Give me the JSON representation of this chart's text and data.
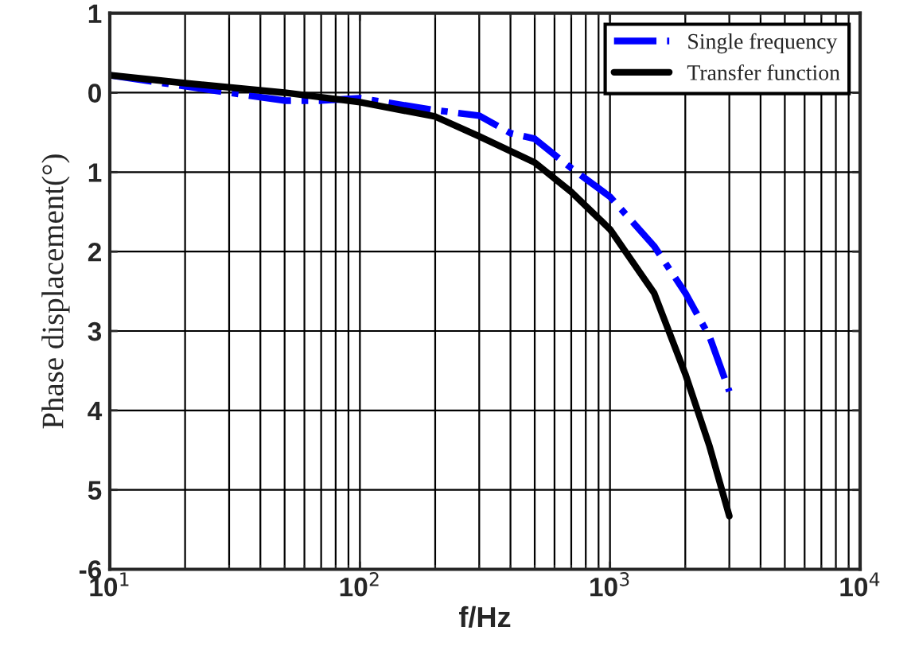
{
  "chart_data": {
    "type": "line",
    "xlabel": "f/Hz",
    "ylabel": "Phase displacement(°)",
    "log": "x",
    "xlim": [
      10,
      10000
    ],
    "ylim": [
      -6,
      1
    ],
    "xticks": [
      {
        "value": 10,
        "label": "10$^{1}$"
      },
      {
        "value": 100,
        "label": "10$^{2}$"
      },
      {
        "value": 1000,
        "label": "10$^{3}$"
      },
      {
        "value": 10000,
        "label": "10$^{4}$"
      }
    ],
    "yticks": [
      {
        "value": -6,
        "label": "-6"
      },
      {
        "value": -5,
        "label": "5"
      },
      {
        "value": -4,
        "label": "4"
      },
      {
        "value": -3,
        "label": "3"
      },
      {
        "value": -2,
        "label": "2"
      },
      {
        "value": -1,
        "label": "1"
      },
      {
        "value": 0,
        "label": "0"
      },
      {
        "value": 1,
        "label": "1"
      }
    ],
    "grid": true,
    "legend": "top right",
    "series": [
      {
        "name": "Single frequency",
        "color": "#0000ff",
        "line_style": "dashdot",
        "x": [
          10,
          20,
          50,
          70,
          100,
          200,
          300,
          400,
          500,
          700,
          1000,
          1500,
          2000,
          2500,
          3000
        ],
        "values": [
          0.22,
          0.08,
          -0.1,
          -0.1,
          -0.07,
          -0.22,
          -0.29,
          -0.51,
          -0.58,
          -0.95,
          -1.31,
          -1.93,
          -2.52,
          -3.07,
          -3.76
        ]
      },
      {
        "name": "Transfer function",
        "color": "#000000",
        "line_style": "solid",
        "x": [
          10,
          20,
          50,
          100,
          200,
          300,
          500,
          700,
          1000,
          1500,
          2000,
          2500,
          3000
        ],
        "values": [
          0.22,
          0.12,
          0.0,
          -0.12,
          -0.3,
          -0.55,
          -0.88,
          -1.25,
          -1.72,
          -2.52,
          -3.54,
          -4.45,
          -5.33
        ]
      }
    ]
  }
}
